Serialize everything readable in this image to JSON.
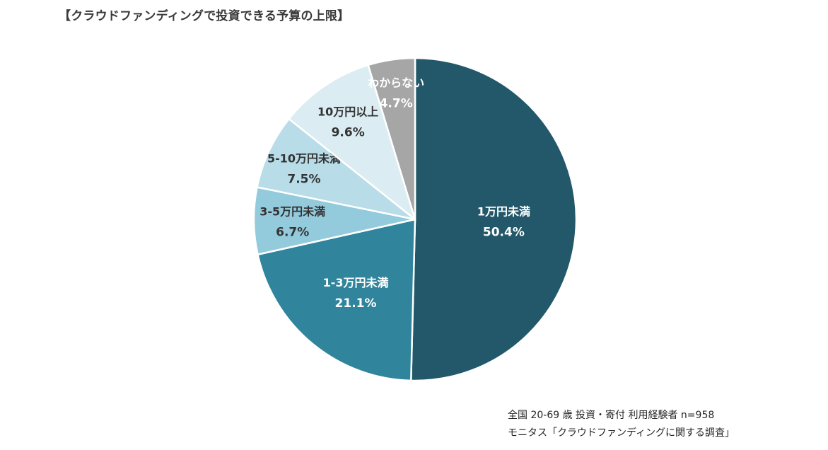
{
  "chart_data": {
    "type": "pie",
    "title": "【クラウドファンディングで投資できる予算の上限】",
    "slices": [
      {
        "label": "1万円未満",
        "value": 50.4,
        "value_label": "50.4%",
        "color": "#22586a",
        "text_color": "#ffffff"
      },
      {
        "label": "1-3万円未満",
        "value": 21.1,
        "value_label": "21.1%",
        "color": "#30849c",
        "text_color": "#ffffff"
      },
      {
        "label": "3-5万円未満",
        "value": 6.7,
        "value_label": "6.7%",
        "color": "#93cbdc",
        "text_color": "#333333"
      },
      {
        "label": "5-10万円未満",
        "value": 7.5,
        "value_label": "7.5%",
        "color": "#b8dce8",
        "text_color": "#333333"
      },
      {
        "label": "10万円以上",
        "value": 9.6,
        "value_label": "9.6%",
        "color": "#dbedf3",
        "text_color": "#333333"
      },
      {
        "label": "わからない",
        "value": 4.7,
        "value_label": "4.7%",
        "color": "#a6a6a6",
        "text_color": "#ffffff"
      }
    ],
    "start_angle": "top",
    "direction": "clockwise",
    "legend": "none",
    "footnotes": [
      "全国 20-69 歳  投資・寄付  利用経験者  n=958",
      "モニタス「クラウドファンディングに関する調査」"
    ]
  }
}
